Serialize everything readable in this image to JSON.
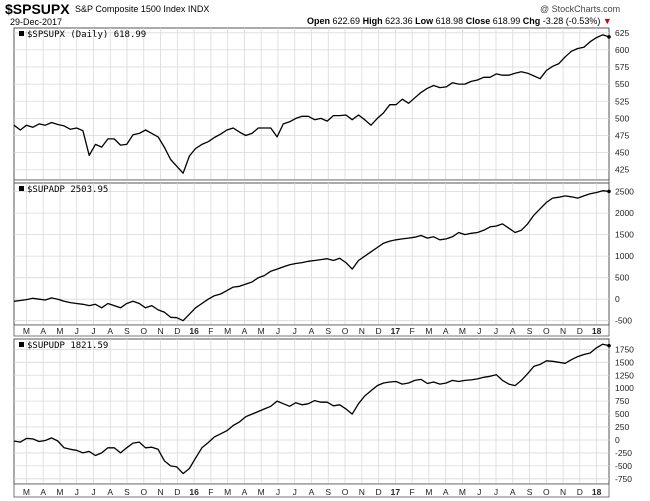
{
  "header": {
    "symbol": "$SPSUPX",
    "name": "S&P Composite 1500 Index",
    "exchange": "INDX",
    "date": "29-Dec-2017",
    "watermark": "@ StockCharts.com",
    "open_label": "Open",
    "open": "622.69",
    "high_label": "High",
    "high": "623.36",
    "low_label": "Low",
    "low": "618.98",
    "close_label": "Close",
    "close": "618.99",
    "chg_label": "Chg",
    "chg": "-3.28 (-0.53%)",
    "chg_arrow": "▼",
    "chg_color": "#cc0000"
  },
  "chart_data": [
    {
      "type": "line",
      "label": "$SPSUPX (Daily) 618.99",
      "ylim": [
        410,
        632
      ],
      "yticks": [
        425,
        450,
        475,
        500,
        525,
        550,
        575,
        600,
        625
      ],
      "points": [
        [
          0,
          490
        ],
        [
          3,
          483
        ],
        [
          6,
          490
        ],
        [
          9,
          487
        ],
        [
          12,
          492
        ],
        [
          15,
          490
        ],
        [
          18,
          494
        ],
        [
          21,
          491
        ],
        [
          24,
          489
        ],
        [
          27,
          484
        ],
        [
          30,
          486
        ],
        [
          33,
          482
        ],
        [
          36,
          446
        ],
        [
          39,
          462
        ],
        [
          42,
          458
        ],
        [
          45,
          470
        ],
        [
          48,
          470
        ],
        [
          51,
          461
        ],
        [
          54,
          462
        ],
        [
          57,
          476
        ],
        [
          60,
          478
        ],
        [
          63,
          483
        ],
        [
          66,
          478
        ],
        [
          69,
          473
        ],
        [
          72,
          458
        ],
        [
          75,
          440
        ],
        [
          78,
          430
        ],
        [
          81,
          420
        ],
        [
          84,
          445
        ],
        [
          87,
          456
        ],
        [
          90,
          462
        ],
        [
          93,
          466
        ],
        [
          96,
          472
        ],
        [
          99,
          477
        ],
        [
          102,
          483
        ],
        [
          105,
          486
        ],
        [
          108,
          480
        ],
        [
          111,
          475
        ],
        [
          114,
          478
        ],
        [
          117,
          486
        ],
        [
          120,
          486
        ],
        [
          123,
          486
        ],
        [
          126,
          473
        ],
        [
          129,
          492
        ],
        [
          132,
          495
        ],
        [
          135,
          500
        ],
        [
          138,
          503
        ],
        [
          141,
          503
        ],
        [
          144,
          498
        ],
        [
          147,
          500
        ],
        [
          150,
          496
        ],
        [
          153,
          504
        ],
        [
          156,
          504
        ],
        [
          159,
          505
        ],
        [
          162,
          498
        ],
        [
          165,
          505
        ],
        [
          168,
          498
        ],
        [
          171,
          490
        ],
        [
          174,
          500
        ],
        [
          177,
          508
        ],
        [
          180,
          520
        ],
        [
          183,
          520
        ],
        [
          186,
          528
        ],
        [
          189,
          522
        ],
        [
          192,
          530
        ],
        [
          195,
          538
        ],
        [
          198,
          544
        ],
        [
          201,
          548
        ],
        [
          204,
          545
        ],
        [
          207,
          546
        ],
        [
          210,
          552
        ],
        [
          213,
          550
        ],
        [
          216,
          550
        ],
        [
          219,
          554
        ],
        [
          222,
          556
        ],
        [
          225,
          560
        ],
        [
          228,
          560
        ],
        [
          231,
          565
        ],
        [
          234,
          563
        ],
        [
          237,
          563
        ],
        [
          240,
          566
        ],
        [
          243,
          568
        ],
        [
          246,
          566
        ],
        [
          249,
          562
        ],
        [
          252,
          558
        ],
        [
          255,
          570
        ],
        [
          258,
          576
        ],
        [
          261,
          580
        ],
        [
          264,
          590
        ],
        [
          267,
          598
        ],
        [
          270,
          602
        ],
        [
          273,
          604
        ],
        [
          276,
          612
        ],
        [
          279,
          618
        ],
        [
          282,
          622
        ],
        [
          285,
          619
        ]
      ]
    },
    {
      "type": "line",
      "label": "$SUPADP 2503.95",
      "ylim": [
        -600,
        2700
      ],
      "yticks": [
        -500,
        0,
        500,
        1000,
        1500,
        2000,
        2500
      ],
      "points": [
        [
          0,
          -50
        ],
        [
          3,
          -30
        ],
        [
          6,
          -10
        ],
        [
          9,
          20
        ],
        [
          12,
          0
        ],
        [
          15,
          -20
        ],
        [
          18,
          30
        ],
        [
          21,
          0
        ],
        [
          24,
          -50
        ],
        [
          27,
          -80
        ],
        [
          30,
          -100
        ],
        [
          33,
          -120
        ],
        [
          36,
          -150
        ],
        [
          39,
          -120
        ],
        [
          42,
          -200
        ],
        [
          45,
          -100
        ],
        [
          48,
          -150
        ],
        [
          51,
          -200
        ],
        [
          54,
          -100
        ],
        [
          57,
          -50
        ],
        [
          60,
          -100
        ],
        [
          63,
          -200
        ],
        [
          66,
          -150
        ],
        [
          69,
          -250
        ],
        [
          72,
          -300
        ],
        [
          75,
          -420
        ],
        [
          78,
          -430
        ],
        [
          81,
          -500
        ],
        [
          84,
          -350
        ],
        [
          87,
          -200
        ],
        [
          90,
          -100
        ],
        [
          93,
          0
        ],
        [
          96,
          80
        ],
        [
          99,
          120
        ],
        [
          102,
          200
        ],
        [
          105,
          280
        ],
        [
          108,
          300
        ],
        [
          111,
          350
        ],
        [
          114,
          400
        ],
        [
          117,
          500
        ],
        [
          120,
          550
        ],
        [
          123,
          650
        ],
        [
          126,
          700
        ],
        [
          129,
          750
        ],
        [
          132,
          800
        ],
        [
          135,
          830
        ],
        [
          138,
          850
        ],
        [
          141,
          880
        ],
        [
          144,
          900
        ],
        [
          147,
          920
        ],
        [
          150,
          940
        ],
        [
          153,
          900
        ],
        [
          156,
          950
        ],
        [
          159,
          850
        ],
        [
          162,
          700
        ],
        [
          165,
          900
        ],
        [
          168,
          1000
        ],
        [
          171,
          1100
        ],
        [
          174,
          1200
        ],
        [
          177,
          1300
        ],
        [
          180,
          1350
        ],
        [
          183,
          1380
        ],
        [
          186,
          1400
        ],
        [
          189,
          1420
        ],
        [
          192,
          1440
        ],
        [
          195,
          1480
        ],
        [
          198,
          1420
        ],
        [
          201,
          1450
        ],
        [
          204,
          1380
        ],
        [
          207,
          1400
        ],
        [
          210,
          1450
        ],
        [
          213,
          1550
        ],
        [
          216,
          1500
        ],
        [
          219,
          1530
        ],
        [
          222,
          1550
        ],
        [
          225,
          1600
        ],
        [
          228,
          1680
        ],
        [
          231,
          1700
        ],
        [
          234,
          1750
        ],
        [
          237,
          1650
        ],
        [
          240,
          1550
        ],
        [
          243,
          1600
        ],
        [
          246,
          1750
        ],
        [
          249,
          1950
        ],
        [
          252,
          2100
        ],
        [
          255,
          2250
        ],
        [
          258,
          2350
        ],
        [
          261,
          2370
        ],
        [
          264,
          2400
        ],
        [
          267,
          2380
        ],
        [
          270,
          2350
        ],
        [
          273,
          2400
        ],
        [
          276,
          2450
        ],
        [
          279,
          2480
        ],
        [
          282,
          2520
        ],
        [
          285,
          2504
        ]
      ]
    },
    {
      "type": "line",
      "label": "$SUPUDP 1821.59",
      "ylim": [
        -850,
        1950
      ],
      "yticks": [
        -750,
        -500,
        -250,
        0,
        250,
        500,
        750,
        1000,
        1250,
        1500,
        1750
      ],
      "points": [
        [
          0,
          -20
        ],
        [
          3,
          -40
        ],
        [
          6,
          30
        ],
        [
          9,
          20
        ],
        [
          12,
          -30
        ],
        [
          15,
          -10
        ],
        [
          18,
          40
        ],
        [
          21,
          -20
        ],
        [
          24,
          -150
        ],
        [
          27,
          -180
        ],
        [
          30,
          -200
        ],
        [
          33,
          -250
        ],
        [
          36,
          -220
        ],
        [
          39,
          -300
        ],
        [
          42,
          -250
        ],
        [
          45,
          -150
        ],
        [
          48,
          -150
        ],
        [
          51,
          -250
        ],
        [
          54,
          -150
        ],
        [
          57,
          -60
        ],
        [
          60,
          -40
        ],
        [
          63,
          -150
        ],
        [
          66,
          -140
        ],
        [
          69,
          -180
        ],
        [
          72,
          -400
        ],
        [
          75,
          -500
        ],
        [
          78,
          -520
        ],
        [
          81,
          -650
        ],
        [
          84,
          -550
        ],
        [
          87,
          -350
        ],
        [
          90,
          -150
        ],
        [
          93,
          -50
        ],
        [
          96,
          60
        ],
        [
          99,
          120
        ],
        [
          102,
          180
        ],
        [
          105,
          280
        ],
        [
          108,
          350
        ],
        [
          111,
          450
        ],
        [
          114,
          500
        ],
        [
          117,
          550
        ],
        [
          120,
          600
        ],
        [
          123,
          650
        ],
        [
          126,
          750
        ],
        [
          129,
          700
        ],
        [
          132,
          650
        ],
        [
          135,
          720
        ],
        [
          138,
          680
        ],
        [
          141,
          700
        ],
        [
          144,
          760
        ],
        [
          147,
          730
        ],
        [
          150,
          730
        ],
        [
          153,
          660
        ],
        [
          156,
          680
        ],
        [
          159,
          600
        ],
        [
          162,
          500
        ],
        [
          165,
          700
        ],
        [
          168,
          850
        ],
        [
          171,
          950
        ],
        [
          174,
          1050
        ],
        [
          177,
          1100
        ],
        [
          180,
          1120
        ],
        [
          183,
          1130
        ],
        [
          186,
          1080
        ],
        [
          189,
          1100
        ],
        [
          192,
          1150
        ],
        [
          195,
          1170
        ],
        [
          198,
          1090
        ],
        [
          201,
          1120
        ],
        [
          204,
          1080
        ],
        [
          207,
          1100
        ],
        [
          210,
          1150
        ],
        [
          213,
          1130
        ],
        [
          216,
          1150
        ],
        [
          219,
          1160
        ],
        [
          222,
          1180
        ],
        [
          225,
          1210
        ],
        [
          228,
          1230
        ],
        [
          231,
          1260
        ],
        [
          234,
          1150
        ],
        [
          237,
          1080
        ],
        [
          240,
          1050
        ],
        [
          243,
          1150
        ],
        [
          246,
          1280
        ],
        [
          249,
          1420
        ],
        [
          252,
          1460
        ],
        [
          255,
          1530
        ],
        [
          258,
          1520
        ],
        [
          261,
          1500
        ],
        [
          264,
          1480
        ],
        [
          267,
          1550
        ],
        [
          270,
          1610
        ],
        [
          273,
          1650
        ],
        [
          276,
          1680
        ],
        [
          279,
          1780
        ],
        [
          282,
          1850
        ],
        [
          285,
          1822
        ]
      ]
    }
  ],
  "x_axis": {
    "months": [
      "M",
      "A",
      "M",
      "J",
      "J",
      "A",
      "S",
      "O",
      "N",
      "D",
      "16",
      "F",
      "M",
      "A",
      "M",
      "J",
      "J",
      "A",
      "S",
      "O",
      "N",
      "D",
      "17",
      "F",
      "M",
      "A",
      "M",
      "J",
      "J",
      "A",
      "S",
      "O",
      "N",
      "D",
      "18"
    ],
    "bold_labels": [
      "16",
      "17",
      "18"
    ],
    "total_days": 285
  },
  "colors": {
    "line": "#000000",
    "grid": "#d9d9d9",
    "frame": "#555555",
    "header_bg": "#ffffff"
  }
}
